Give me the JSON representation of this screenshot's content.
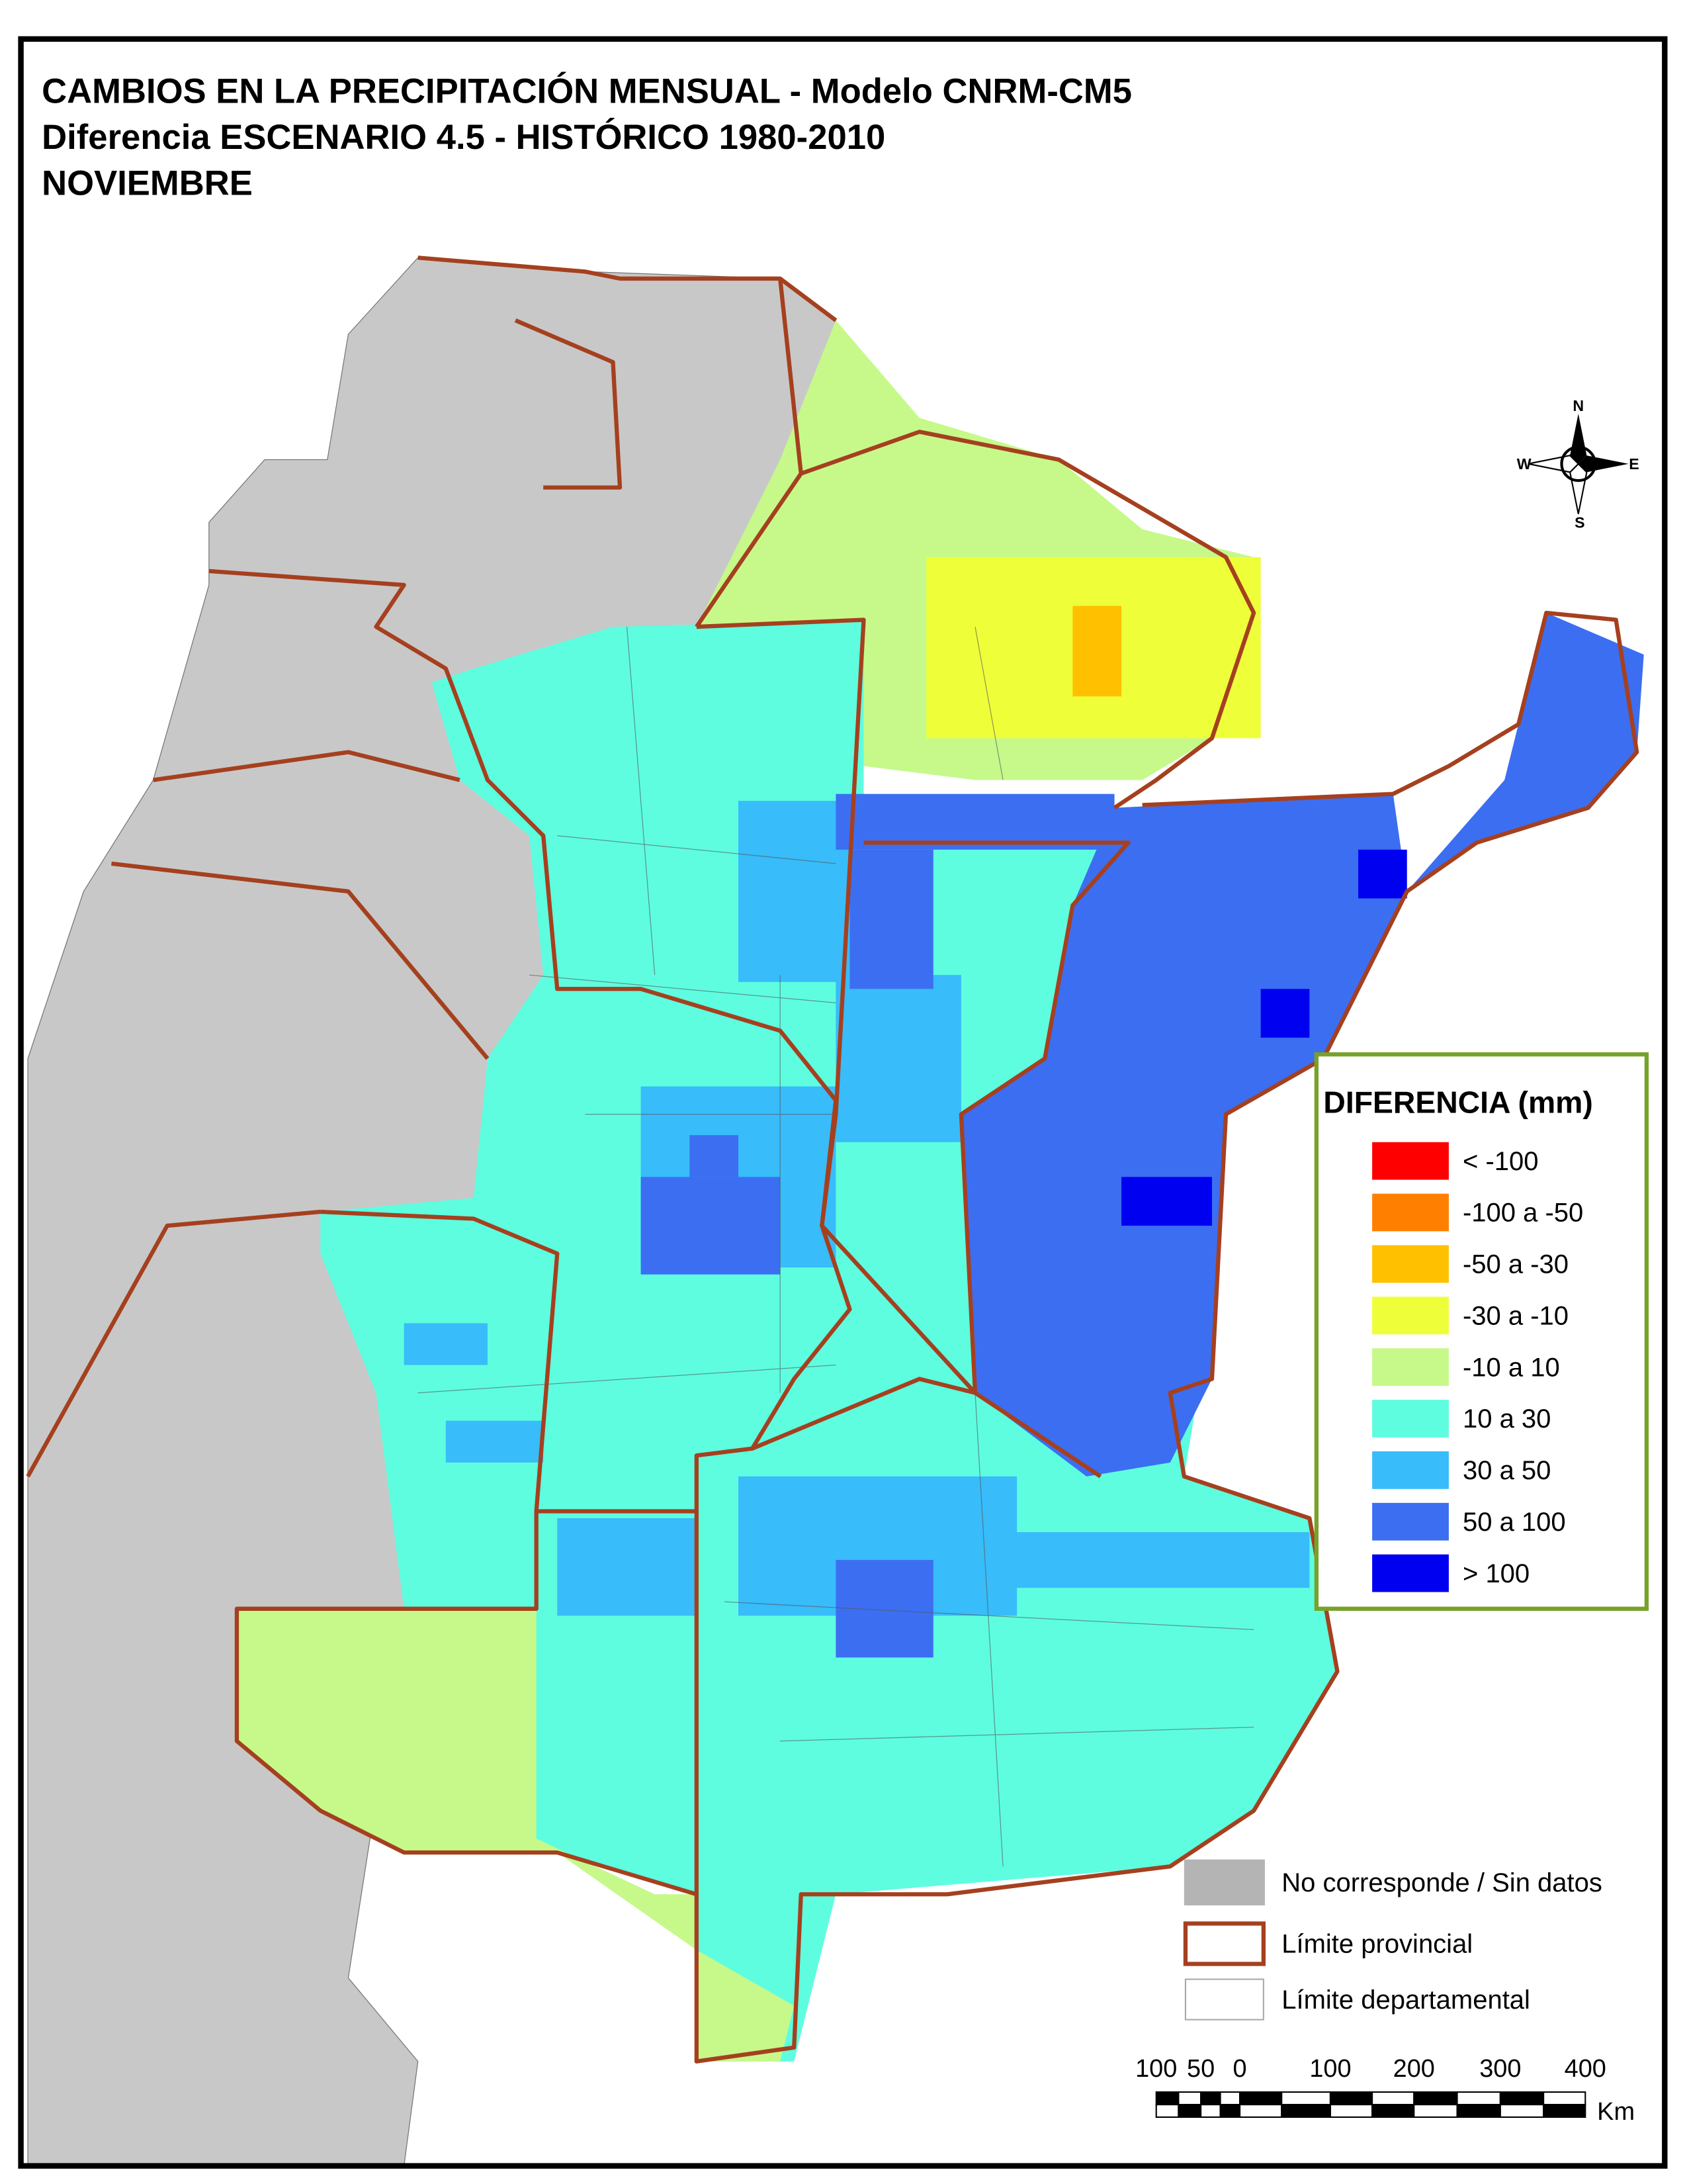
{
  "header": {
    "title": [
      "CAMBIOS EN LA PRECIPITACIÓN MENSUAL - Modelo CNRM-CM5",
      "Diferencia ESCENARIO 4.5 - HISTÓRICO 1980-2010",
      "NOVIEMBRE"
    ]
  },
  "legend": {
    "title": "DIFERENCIA (mm)",
    "items": [
      {
        "label": "< -100",
        "color": "#ff0000"
      },
      {
        "label": "-100 a -50",
        "color": "#ff8000"
      },
      {
        "label": "-50 a -30",
        "color": "#ffc000"
      },
      {
        "label": "-30 a -10",
        "color": "#eeff3a"
      },
      {
        "label": "-10 a 10",
        "color": "#c6f98a"
      },
      {
        "label": "10 a 30",
        "color": "#5efde0"
      },
      {
        "label": "30 a 50",
        "color": "#38bcfa"
      },
      {
        "label": "50 a 100",
        "color": "#3c6ef2"
      },
      {
        "label": "> 100",
        "color": "#0000f0"
      }
    ]
  },
  "reference": [
    {
      "label": "No corresponde / Sin datos"
    },
    {
      "label": "Límite provincial"
    },
    {
      "label": "Límite departamental"
    }
  ],
  "compass": {
    "north": "N",
    "south": "S",
    "east": "E",
    "west": "W"
  },
  "scale": {
    "labels": [
      100,
      50,
      0,
      100,
      200,
      300,
      400
    ],
    "unit": "Km"
  }
}
